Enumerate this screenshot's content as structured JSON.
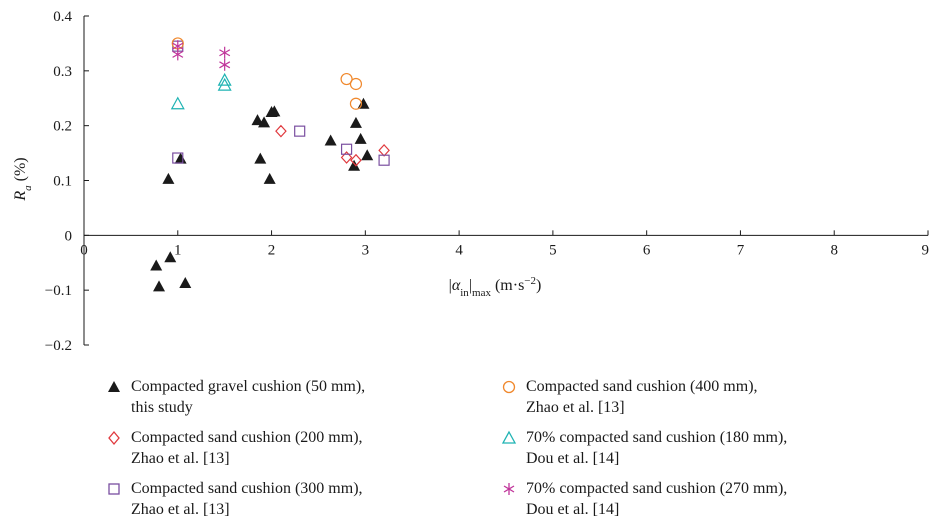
{
  "chart_data": {
    "type": "scatter",
    "xlabel": {
      "pre": "|",
      "alpha": "α",
      "sub_in": "in",
      "close": "|",
      "sub_max": "max",
      "unit_pre": " (m·s",
      "sup": "−2",
      "unit_post": ")"
    },
    "ylabel": {
      "var": "R",
      "sub": "a",
      "unit": " (%)"
    },
    "xlim": [
      0,
      9
    ],
    "ylim": [
      -0.2,
      0.4
    ],
    "x_ticks": [
      "0",
      "1",
      "2",
      "3",
      "4",
      "5",
      "6",
      "7",
      "8",
      "9"
    ],
    "y_ticks": [
      "0.4",
      "0.3",
      "0.2",
      "0.1",
      "0",
      "−0.1",
      "−0.2"
    ],
    "grid": false,
    "legend_position": "bottom",
    "series": [
      {
        "name": "Compacted gravel cushion (50 mm),\nthis study",
        "marker": "filled-triangle",
        "color": "#1a1a1a",
        "points": [
          [
            0.77,
            -0.055
          ],
          [
            0.8,
            -0.093
          ],
          [
            0.9,
            0.103
          ],
          [
            0.92,
            -0.04
          ],
          [
            1.03,
            0.14
          ],
          [
            1.08,
            -0.087
          ],
          [
            1.85,
            0.21
          ],
          [
            1.88,
            0.14
          ],
          [
            1.92,
            0.206
          ],
          [
            1.98,
            0.103
          ],
          [
            2.0,
            0.225
          ],
          [
            2.03,
            0.226
          ],
          [
            2.63,
            0.173
          ],
          [
            2.88,
            0.127
          ],
          [
            2.9,
            0.205
          ],
          [
            2.95,
            0.176
          ],
          [
            2.98,
            0.24
          ],
          [
            3.02,
            0.146
          ]
        ]
      },
      {
        "name": "Compacted sand cushion (200 mm),\nZhao et al. [13]",
        "marker": "open-diamond",
        "color": "#e0393e",
        "points": [
          [
            2.1,
            0.19
          ],
          [
            2.8,
            0.142
          ],
          [
            2.9,
            0.137
          ],
          [
            3.2,
            0.155
          ]
        ]
      },
      {
        "name": "Compacted sand cushion (300 mm),\nZhao et al. [13]",
        "marker": "open-square",
        "color": "#7a4fa0",
        "points": [
          [
            1.0,
            0.141
          ],
          [
            1.0,
            0.345
          ],
          [
            2.3,
            0.19
          ],
          [
            2.8,
            0.157
          ],
          [
            3.2,
            0.137
          ]
        ]
      },
      {
        "name": "Compacted sand cushion (400 mm),\nZhao et al. [13]",
        "marker": "open-circle",
        "color": "#f0882c",
        "points": [
          [
            1.0,
            0.35
          ],
          [
            2.8,
            0.285
          ],
          [
            2.9,
            0.276
          ],
          [
            2.9,
            0.24
          ]
        ]
      },
      {
        "name": "70% compacted sand cushion (180 mm),\nDou et al. [14]",
        "marker": "open-triangle",
        "color": "#1fb3b3",
        "points": [
          [
            1.0,
            0.24
          ],
          [
            1.5,
            0.283
          ],
          [
            1.5,
            0.274
          ]
        ]
      },
      {
        "name": "70% compacted sand cushion (270 mm),\nDou et al. [14]",
        "marker": "asterisk",
        "color": "#c0349a",
        "points": [
          [
            1.0,
            0.33
          ],
          [
            1.0,
            0.345
          ],
          [
            1.5,
            0.333
          ],
          [
            1.5,
            0.311
          ]
        ]
      }
    ]
  }
}
